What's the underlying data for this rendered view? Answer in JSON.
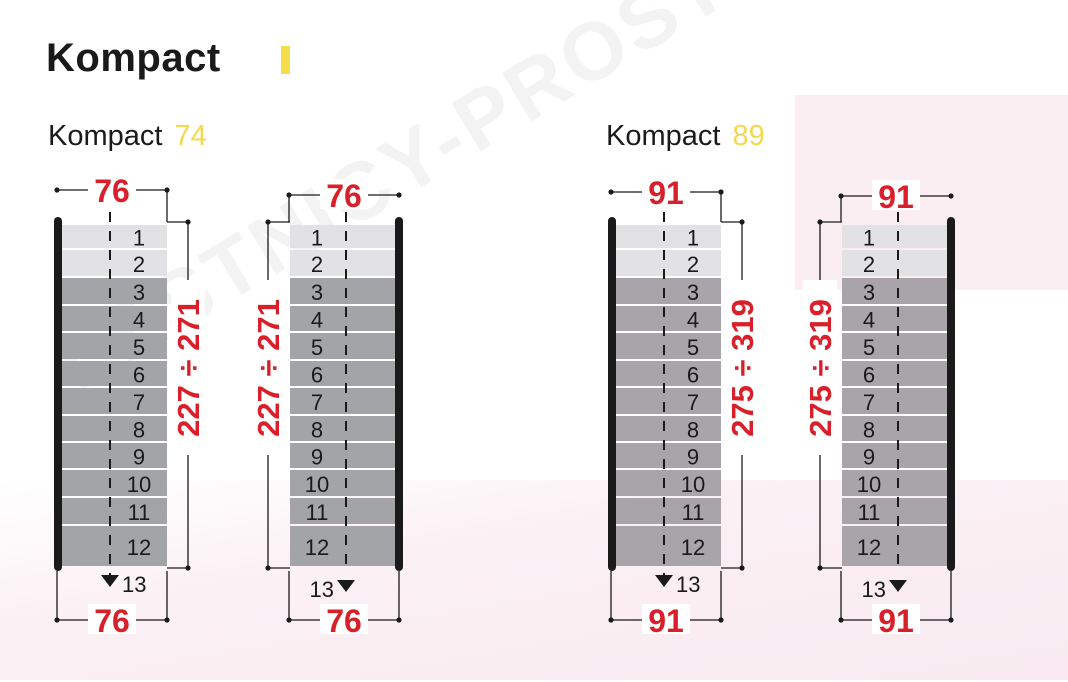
{
  "title": "Kompact",
  "watermark": "LESTNICY-PROSTO.RU",
  "colors": {
    "red": "#d9202a",
    "accent_yellow": "#f4d94a",
    "step_light": "#e2e2e4",
    "step_dark": "#a3a4a7",
    "rail": "#1a1a1a"
  },
  "models": [
    {
      "name": "Kompact",
      "number": "74",
      "width_label": "76",
      "height_label": "227 ÷ 271",
      "steps": [
        "1",
        "2",
        "3",
        "4",
        "5",
        "6",
        "7",
        "8",
        "9",
        "10",
        "11",
        "12"
      ],
      "exit_step": "13"
    },
    {
      "name": "Kompact",
      "number": "89",
      "width_label": "91",
      "height_label": "275 ÷ 319",
      "steps": [
        "1",
        "2",
        "3",
        "4",
        "5",
        "6",
        "7",
        "8",
        "9",
        "10",
        "11",
        "12"
      ],
      "exit_step": "13"
    }
  ]
}
